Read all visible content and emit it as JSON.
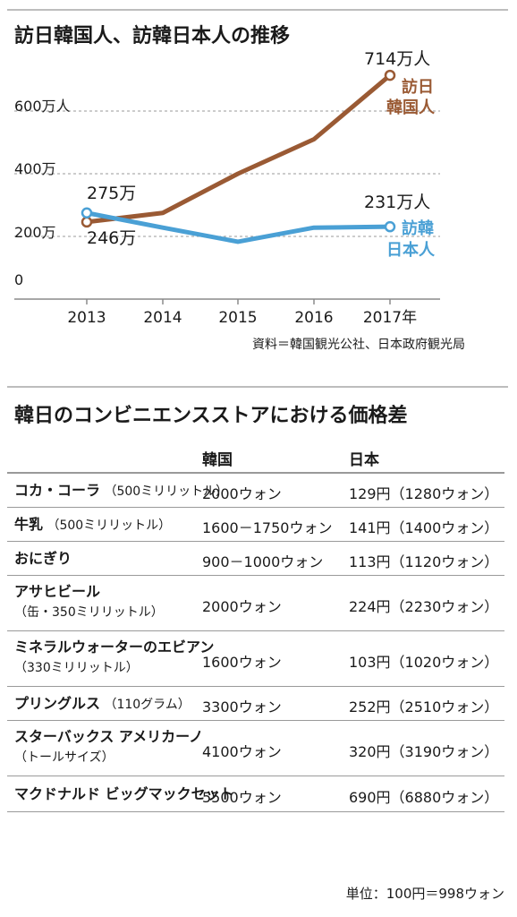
{
  "chart_title": "訪日韓国人、訪韓日本人の推移",
  "source_note": "資料＝韓国観光公社、日本政府観光局",
  "chart_data": {
    "type": "line",
    "title": "訪日韓国人、訪韓日本人の推移",
    "x": [
      "2013",
      "2014",
      "2015",
      "2016",
      "2017年"
    ],
    "ylim": [
      0,
      700
    ],
    "yticks": [
      "0",
      "200万",
      "400万",
      "600万人"
    ],
    "ytick_values": [
      0,
      200,
      400,
      600
    ],
    "grid": true,
    "series": [
      {
        "name": "訪日韓国人",
        "name_lines": [
          "訪日",
          "韓国人"
        ],
        "color": "#9a5a34",
        "values": [
          246,
          275,
          400,
          510,
          714
        ],
        "start_label": "246万",
        "end_label": "714万人"
      },
      {
        "name": "訪韓日本人",
        "name_lines": [
          "訪韓",
          "日本人"
        ],
        "color": "#4aa0d5",
        "values": [
          275,
          228,
          183,
          228,
          231
        ],
        "start_label": "275万",
        "end_label": "231万人"
      }
    ]
  },
  "table": {
    "title": "韓日のコンビニエンスストアにおける価格差",
    "headers": [
      "韓国",
      "日本"
    ],
    "rows": [
      {
        "item": "コカ・コーラ",
        "note": "（500ミリリットル）",
        "item2": "",
        "korea": "2000ウォン",
        "japan": "129円（1280ウォン）"
      },
      {
        "item": "牛乳",
        "note": "（500ミリリットル）",
        "item2": "",
        "korea": "1600－1750ウォン",
        "japan": "141円（1400ウォン）"
      },
      {
        "item": "おにぎり",
        "note": "",
        "item2": "",
        "korea": "900－1000ウォン",
        "japan": "113円（1120ウォン）"
      },
      {
        "item": "アサヒビール",
        "note": "",
        "item2": "（缶・350ミリリットル）",
        "korea": "2000ウォン",
        "japan": "224円（2230ウォン）"
      },
      {
        "item": "ミネラルウォーターのエビアン",
        "note": "",
        "item2": "（330ミリリットル）",
        "korea": "1600ウォン",
        "japan": "103円（1020ウォン）"
      },
      {
        "item": "プリングルス",
        "note": "（110グラム）",
        "item2": "",
        "korea": "3300ウォン",
        "japan": "252円（2510ウォン）"
      },
      {
        "item": "スターバックス アメリカーノ",
        "note": "",
        "item2": "（トールサイズ）",
        "korea": "4100ウォン",
        "japan": "320円（3190ウォン）"
      },
      {
        "item": "マクドナルド ビッグマックセット",
        "note": "",
        "item2": "",
        "korea": "5500ウォン",
        "japan": "690円（6880ウォン）"
      }
    ],
    "unit_note": "単位：100円＝998ウォン"
  }
}
